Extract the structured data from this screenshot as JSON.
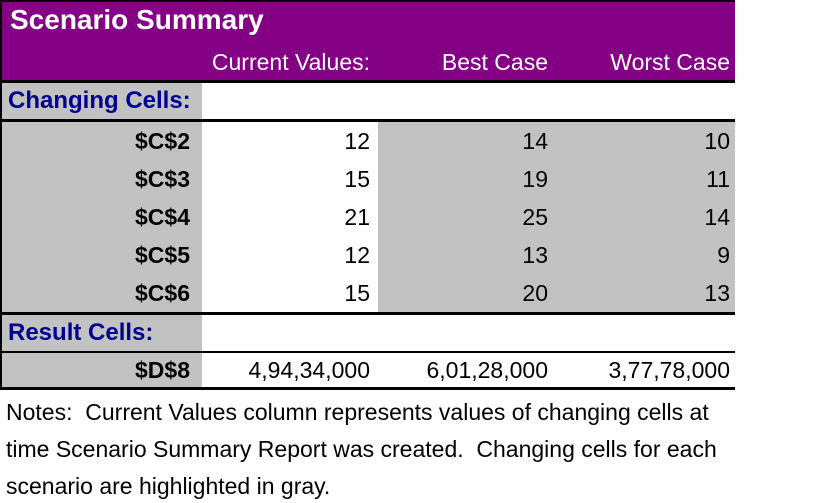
{
  "colors": {
    "header_background": "#840084",
    "highlight_gray": "#C2C2C2",
    "section_label_blue": "#000090",
    "border_black": "#000000",
    "header_text": "#ffffff"
  },
  "table": {
    "title": "Scenario Summary",
    "column_headers": {
      "current": "Current Values:",
      "best": "Best Case",
      "worst": "Worst Case"
    },
    "changing_cells_label": "Changing Cells:",
    "result_cells_label": "Result Cells:",
    "changing_rows": [
      {
        "cell": "$C$2",
        "current": "12",
        "best": "14",
        "worst": "10"
      },
      {
        "cell": "$C$3",
        "current": "15",
        "best": "19",
        "worst": "11"
      },
      {
        "cell": "$C$4",
        "current": "21",
        "best": "25",
        "worst": "14"
      },
      {
        "cell": "$C$5",
        "current": "12",
        "best": "13",
        "worst": "9"
      },
      {
        "cell": "$C$6",
        "current": "15",
        "best": "20",
        "worst": "13"
      }
    ],
    "result_rows": [
      {
        "cell": "$D$8",
        "current": "4,94,34,000",
        "best": "6,01,28,000",
        "worst": "3,77,78,000"
      }
    ]
  },
  "notes": {
    "lines": [
      "Notes:  Current Values column represents values of changing cells at",
      "time Scenario Summary Report was created.  Changing cells for each",
      "scenario are highlighted in gray."
    ]
  }
}
